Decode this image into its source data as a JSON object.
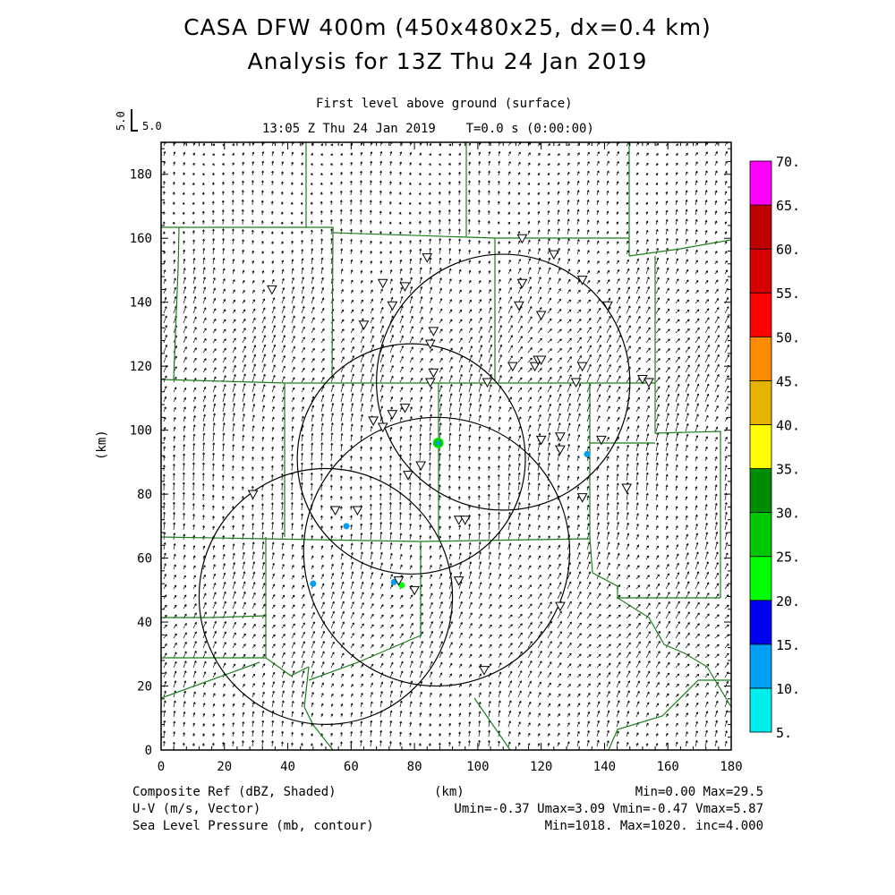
{
  "header": {
    "title_line1": "CASA DFW 400m (450x480x25, dx=0.4 km)",
    "title_line2": "Analysis for 13Z Thu 24 Jan 2019",
    "level": "First level above ground (surface)",
    "time": "13:05 Z Thu 24 Jan 2019    T=0.0 s (0:00:00)",
    "ref_vector_label": "5.0",
    "ref_vector_axis": "5.0"
  },
  "footer": {
    "left": [
      "Composite Ref (dBZ, Shaded)",
      "U-V (m/s, Vector)",
      "Sea Level Pressure (mb, contour)"
    ],
    "center": "(km)",
    "right": [
      "Min=0.00 Max=29.5",
      "Umin=-0.37 Umax=3.09 Vmin=-0.47 Vmax=5.87",
      "Min=1018. Max=1020. inc=4.000"
    ]
  },
  "colorbar": {
    "labels": [
      "5.",
      "10.",
      "15.",
      "20.",
      "25.",
      "30.",
      "35.",
      "40.",
      "45.",
      "50.",
      "55.",
      "60.",
      "65.",
      "70."
    ],
    "colors": [
      "#00eeee",
      "#00a0f5",
      "#0000f0",
      "#00ff00",
      "#00c800",
      "#008c00",
      "#ffff00",
      "#e6b400",
      "#ff8c00",
      "#ff0000",
      "#d70000",
      "#be0000",
      "#ff00ff"
    ]
  },
  "chart_data": {
    "type": "scatter",
    "xlabel": "",
    "ylabel": "(km)",
    "xlim": [
      0,
      180
    ],
    "ylim": [
      0,
      190
    ],
    "xticks": [
      "0",
      "20",
      "40",
      "60",
      "80",
      "100",
      "120",
      "140",
      "160",
      "180"
    ],
    "yticks": [
      "0",
      "20",
      "40",
      "60",
      "80",
      "100",
      "120",
      "140",
      "160",
      "180"
    ],
    "radar_range_rings": [
      {
        "cx": 79,
        "cy": 91,
        "r": 36
      },
      {
        "cx": 108,
        "cy": 115,
        "r": 40
      },
      {
        "cx": 52,
        "cy": 48,
        "r": 40
      },
      {
        "cx": 87,
        "cy": 62,
        "r": 42
      }
    ],
    "stations": [
      [
        35,
        144
      ],
      [
        84,
        154
      ],
      [
        70,
        146
      ],
      [
        77,
        145
      ],
      [
        64,
        133
      ],
      [
        73,
        139
      ],
      [
        86,
        131
      ],
      [
        85,
        127
      ],
      [
        114,
        160
      ],
      [
        124,
        155
      ],
      [
        133,
        147
      ],
      [
        114,
        146
      ],
      [
        141,
        139
      ],
      [
        113,
        139
      ],
      [
        120,
        136
      ],
      [
        86,
        118
      ],
      [
        85,
        115
      ],
      [
        103,
        115
      ],
      [
        111,
        120
      ],
      [
        118,
        120
      ],
      [
        119,
        122
      ],
      [
        120,
        122
      ],
      [
        133,
        120
      ],
      [
        131,
        115
      ],
      [
        152,
        116
      ],
      [
        154,
        115
      ],
      [
        67,
        103
      ],
      [
        73,
        105
      ],
      [
        77,
        107
      ],
      [
        70,
        101
      ],
      [
        120,
        97
      ],
      [
        126,
        98
      ],
      [
        126,
        94
      ],
      [
        139,
        97
      ],
      [
        78,
        86
      ],
      [
        82,
        89
      ],
      [
        147,
        82
      ],
      [
        133,
        79
      ],
      [
        29,
        80
      ],
      [
        55,
        75
      ],
      [
        62,
        75
      ],
      [
        94,
        72
      ],
      [
        96,
        72
      ],
      [
        80,
        50
      ],
      [
        75,
        53
      ],
      [
        94,
        53
      ],
      [
        126,
        45
      ],
      [
        102,
        25
      ]
    ],
    "reflectivity_echoes": [
      {
        "x": 87.5,
        "y": 96,
        "dbz": 29.5
      },
      {
        "x": 134.5,
        "y": 92.5,
        "dbz": 12
      },
      {
        "x": 58.5,
        "y": 70,
        "dbz": 12
      },
      {
        "x": 73.5,
        "y": 52.5,
        "dbz": 12
      },
      {
        "x": 76,
        "y": 51.5,
        "dbz": 20
      },
      {
        "x": 48,
        "y": 52,
        "dbz": 10
      }
    ]
  }
}
